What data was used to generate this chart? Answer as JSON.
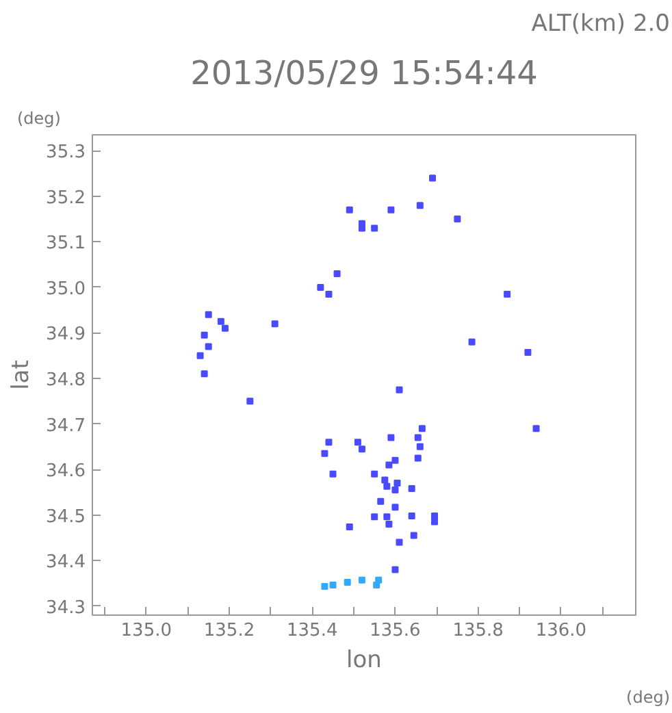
{
  "chart_data": {
    "type": "scatter",
    "title": "2013/05/29 15:54:44",
    "xlabel": "lon",
    "ylabel": "lat",
    "annotations": [
      "ALT(km) 2.0",
      "(deg)",
      "(deg)"
    ],
    "xlim": [
      134.87,
      136.18
    ],
    "ylim": [
      34.28,
      35.335
    ],
    "xticks": [
      {
        "value": 134.9,
        "label": null
      },
      {
        "value": 135.0,
        "label": "135.0"
      },
      {
        "value": 135.1,
        "label": null
      },
      {
        "value": 135.2,
        "label": "135.2"
      },
      {
        "value": 135.3,
        "label": null
      },
      {
        "value": 135.4,
        "label": "135.4"
      },
      {
        "value": 135.5,
        "label": null
      },
      {
        "value": 135.6,
        "label": "135.6"
      },
      {
        "value": 135.7,
        "label": null
      },
      {
        "value": 135.8,
        "label": "135.8"
      },
      {
        "value": 135.9,
        "label": null
      },
      {
        "value": 136.0,
        "label": "136.0"
      },
      {
        "value": 136.1,
        "label": null
      }
    ],
    "yticks": [
      34.3,
      34.4,
      34.5,
      34.6,
      34.7,
      34.8,
      34.9,
      {
        "value": 35.0,
        "label": "35.0"
      },
      35.1,
      35.2,
      35.3
    ],
    "marker": "square",
    "grid": false,
    "series": [
      {
        "color": "#4a4aff",
        "x": [
          135.69,
          135.49,
          135.59,
          135.66,
          135.52,
          135.52,
          135.55,
          135.75,
          135.46,
          135.42,
          135.44,
          135.87,
          135.15,
          135.18,
          135.19,
          135.31,
          135.14,
          135.15,
          135.13,
          135.785,
          135.92,
          135.14,
          135.25,
          135.61,
          135.94,
          135.665,
          135.655,
          135.44,
          135.51,
          135.59,
          135.52,
          135.43,
          135.66,
          135.6,
          135.655,
          135.585,
          135.45,
          135.55,
          135.575,
          135.605,
          135.58,
          135.6,
          135.64,
          135.565,
          135.6,
          135.58,
          135.55,
          135.585,
          135.64,
          135.695,
          135.695,
          135.49,
          135.645,
          135.61,
          135.6
        ],
        "values": [
          35.24,
          35.17,
          35.17,
          35.18,
          35.14,
          35.13,
          35.13,
          35.15,
          35.03,
          35.0,
          34.985,
          34.985,
          34.94,
          34.925,
          34.91,
          34.92,
          34.895,
          34.87,
          34.85,
          34.88,
          34.857,
          34.81,
          34.75,
          34.775,
          34.69,
          34.69,
          34.67,
          34.66,
          34.66,
          34.67,
          34.645,
          34.635,
          34.65,
          34.62,
          34.625,
          34.61,
          34.59,
          34.59,
          34.577,
          34.57,
          34.563,
          34.555,
          34.558,
          34.53,
          34.517,
          34.496,
          34.496,
          34.48,
          34.498,
          34.498,
          34.485,
          34.474,
          34.455,
          34.44,
          34.38
        ]
      },
      {
        "color": "#33aaff",
        "x": [
          135.45,
          135.485,
          135.52,
          135.56,
          135.555,
          135.43
        ],
        "values": [
          34.346,
          34.352,
          34.357,
          34.357,
          34.346,
          34.343
        ]
      }
    ]
  }
}
